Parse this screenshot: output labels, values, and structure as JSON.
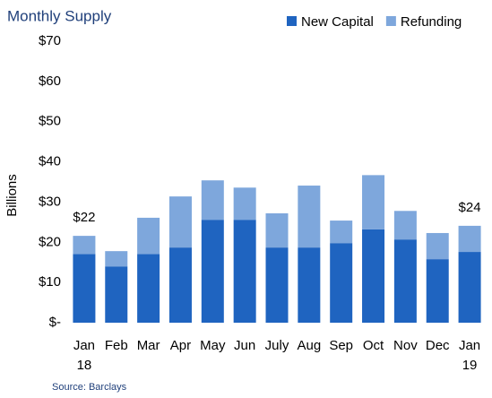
{
  "chart_data": {
    "type": "bar",
    "stacked": true,
    "title": "Monthly Supply",
    "y_label": "Billions",
    "source": "Source: Barclays",
    "categories": [
      "Jan 18",
      "Feb",
      "Mar",
      "Apr",
      "May",
      "Jun",
      "July",
      "Aug",
      "Sep",
      "Oct",
      "Nov",
      "Dec",
      "Jan 19"
    ],
    "series": [
      {
        "name": "New Capital",
        "color": "#1f64c0",
        "values": [
          17.1,
          14.0,
          17.1,
          18.7,
          25.6,
          25.6,
          18.7,
          18.7,
          19.8,
          23.2,
          20.7,
          15.8,
          17.6
        ]
      },
      {
        "name": "Refunding",
        "color": "#7ea7dc",
        "values": [
          4.5,
          3.8,
          9.0,
          12.7,
          9.8,
          8.0,
          8.5,
          15.4,
          5.6,
          13.5,
          7.1,
          6.5,
          6.5
        ]
      }
    ],
    "annotations": [
      {
        "text": "$22",
        "category": "Jan 18"
      },
      {
        "text": "$24",
        "category": "Jan 19"
      }
    ],
    "ylim": [
      0,
      70
    ],
    "yticks": [
      {
        "value": 0,
        "label": "$-"
      },
      {
        "value": 10,
        "label": "$10"
      },
      {
        "value": 20,
        "label": "$20"
      },
      {
        "value": 30,
        "label": "$30"
      },
      {
        "value": 40,
        "label": "$40"
      },
      {
        "value": 50,
        "label": "$50"
      },
      {
        "value": 60,
        "label": "$60"
      },
      {
        "value": 70,
        "label": "$70"
      }
    ],
    "legend": "top-right",
    "grid": false
  }
}
